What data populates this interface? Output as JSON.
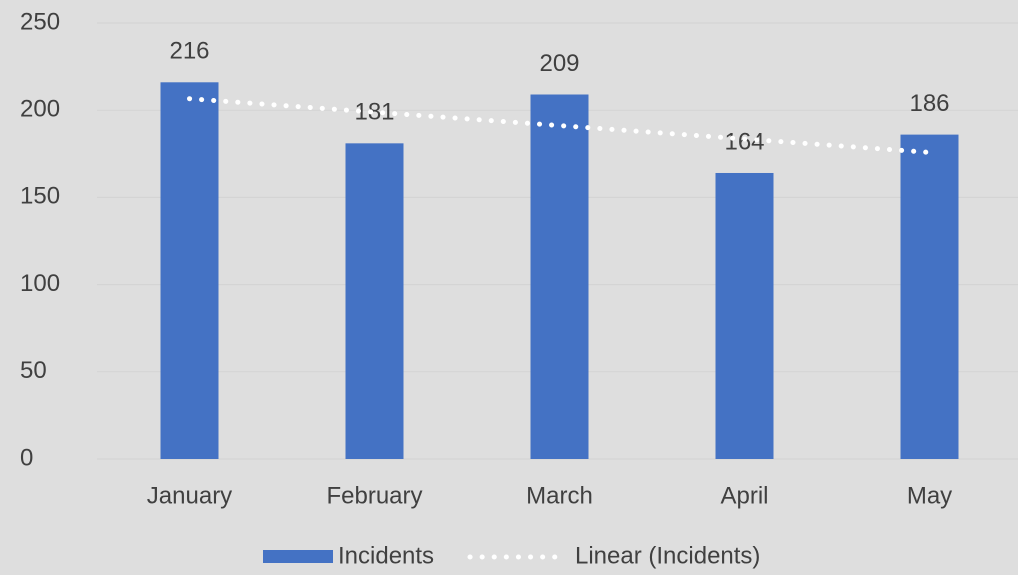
{
  "chart_data": {
    "type": "bar",
    "categories": [
      "January",
      "February",
      "March",
      "April",
      "May"
    ],
    "series": [
      {
        "name": "Incidents",
        "color": "#4472c4",
        "values": [
          216,
          181,
          209,
          164,
          186
        ]
      }
    ],
    "trendline": {
      "name": "Linear (Incidents)",
      "kind": "linear",
      "color": "#ffffff"
    },
    "ylim": [
      0,
      250
    ],
    "yticks": [
      0,
      50,
      100,
      150,
      200,
      250
    ],
    "grid": true,
    "legend": "bottom",
    "data_labels": true
  }
}
